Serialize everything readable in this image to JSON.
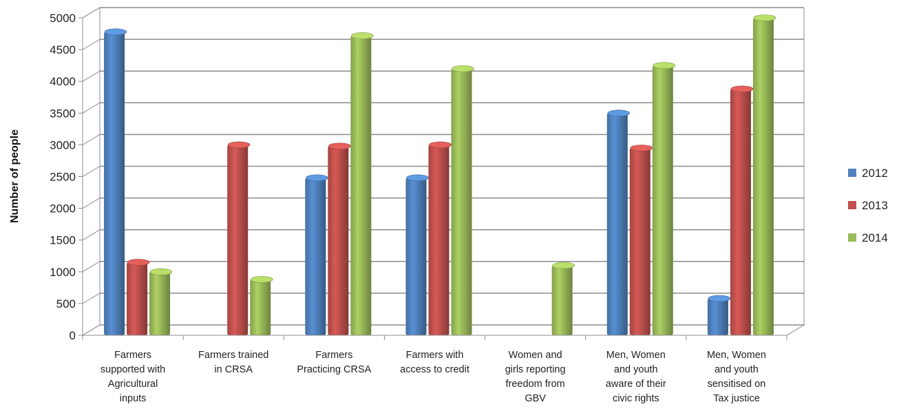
{
  "chart_data": {
    "type": "bar",
    "title": "",
    "xlabel": "",
    "ylabel": "Number of people",
    "ylim": [
      0,
      5000
    ],
    "y_ticks": [
      0,
      500,
      1000,
      1500,
      2000,
      2500,
      3000,
      3500,
      4000,
      4500,
      5000
    ],
    "grid": true,
    "legend_position": "right",
    "categories": [
      "Farmers supported with Agricultural inputs",
      "Farmers trained in CRSA",
      "Farmers Practicing CRSA",
      "Farmers with access to credit",
      "Women and girls reporting freedom from GBV",
      "Men, Women and youth aware of their civic rights",
      "Men, Women and youth sensitised on Tax justice"
    ],
    "category_lines": [
      [
        "Farmers",
        "supported with",
        "Agricultural",
        "inputs"
      ],
      [
        "Farmers trained",
        "in CRSA"
      ],
      [
        "Farmers",
        "Practicing CRSA"
      ],
      [
        "Farmers with",
        "access to credit"
      ],
      [
        "Women and",
        "girls reporting",
        "freedom from",
        "GBV"
      ],
      [
        "Men, Women",
        "and youth",
        "aware of their",
        "civic rights"
      ],
      [
        "Men, Women",
        "and youth",
        "sensitised on",
        "Tax justice"
      ]
    ],
    "series": [
      {
        "name": "2012",
        "color": "#4F81BD",
        "values": [
          4780,
          0,
          2480,
          2480,
          0,
          3500,
          580
        ]
      },
      {
        "name": "2013",
        "color": "#C0504D",
        "values": [
          1150,
          3000,
          2980,
          3000,
          0,
          2950,
          3880
        ]
      },
      {
        "name": "2014",
        "color": "#9BBB59",
        "values": [
          1000,
          880,
          4720,
          4200,
          1100,
          4250,
          5000
        ]
      }
    ]
  }
}
